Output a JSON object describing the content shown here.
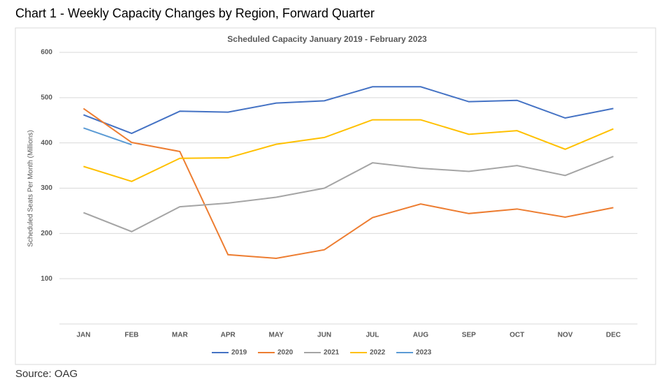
{
  "heading": "Chart 1 - Weekly Capacity Changes by Region, Forward Quarter",
  "source": "Source: OAG",
  "chart_data": {
    "type": "line",
    "title": "Scheduled Capacity January 2019  - February 2023",
    "y_label": "Scheduled Seats Per Month (Millions)",
    "categories": [
      "JAN",
      "FEB",
      "MAR",
      "APR",
      "MAY",
      "JUN",
      "JUL",
      "AUG",
      "SEP",
      "OCT",
      "NOV",
      "DEC"
    ],
    "series": [
      {
        "name": "2019",
        "color": "#4472c4",
        "values": [
          462,
          421,
          470,
          468,
          488,
          493,
          524,
          524,
          491,
          494,
          455,
          476
        ]
      },
      {
        "name": "2020",
        "color": "#ed7d31",
        "values": [
          476,
          401,
          381,
          153,
          145,
          164,
          235,
          265,
          244,
          254,
          236,
          257
        ]
      },
      {
        "name": "2021",
        "color": "#a5a5a5",
        "values": [
          246,
          204,
          259,
          267,
          280,
          300,
          356,
          344,
          337,
          350,
          328,
          370
        ]
      },
      {
        "name": "2022",
        "color": "#ffc000",
        "values": [
          348,
          315,
          366,
          367,
          397,
          412,
          451,
          451,
          419,
          427,
          386,
          431
        ]
      },
      {
        "name": "2023",
        "color": "#5b9bd5",
        "values": [
          433,
          396,
          null,
          null,
          null,
          null,
          null,
          null,
          null,
          null,
          null,
          null
        ]
      }
    ],
    "ylim": [
      0,
      600
    ],
    "yticks": [
      100,
      200,
      300,
      400,
      500,
      600
    ],
    "grid": true,
    "legend": "bottom"
  }
}
